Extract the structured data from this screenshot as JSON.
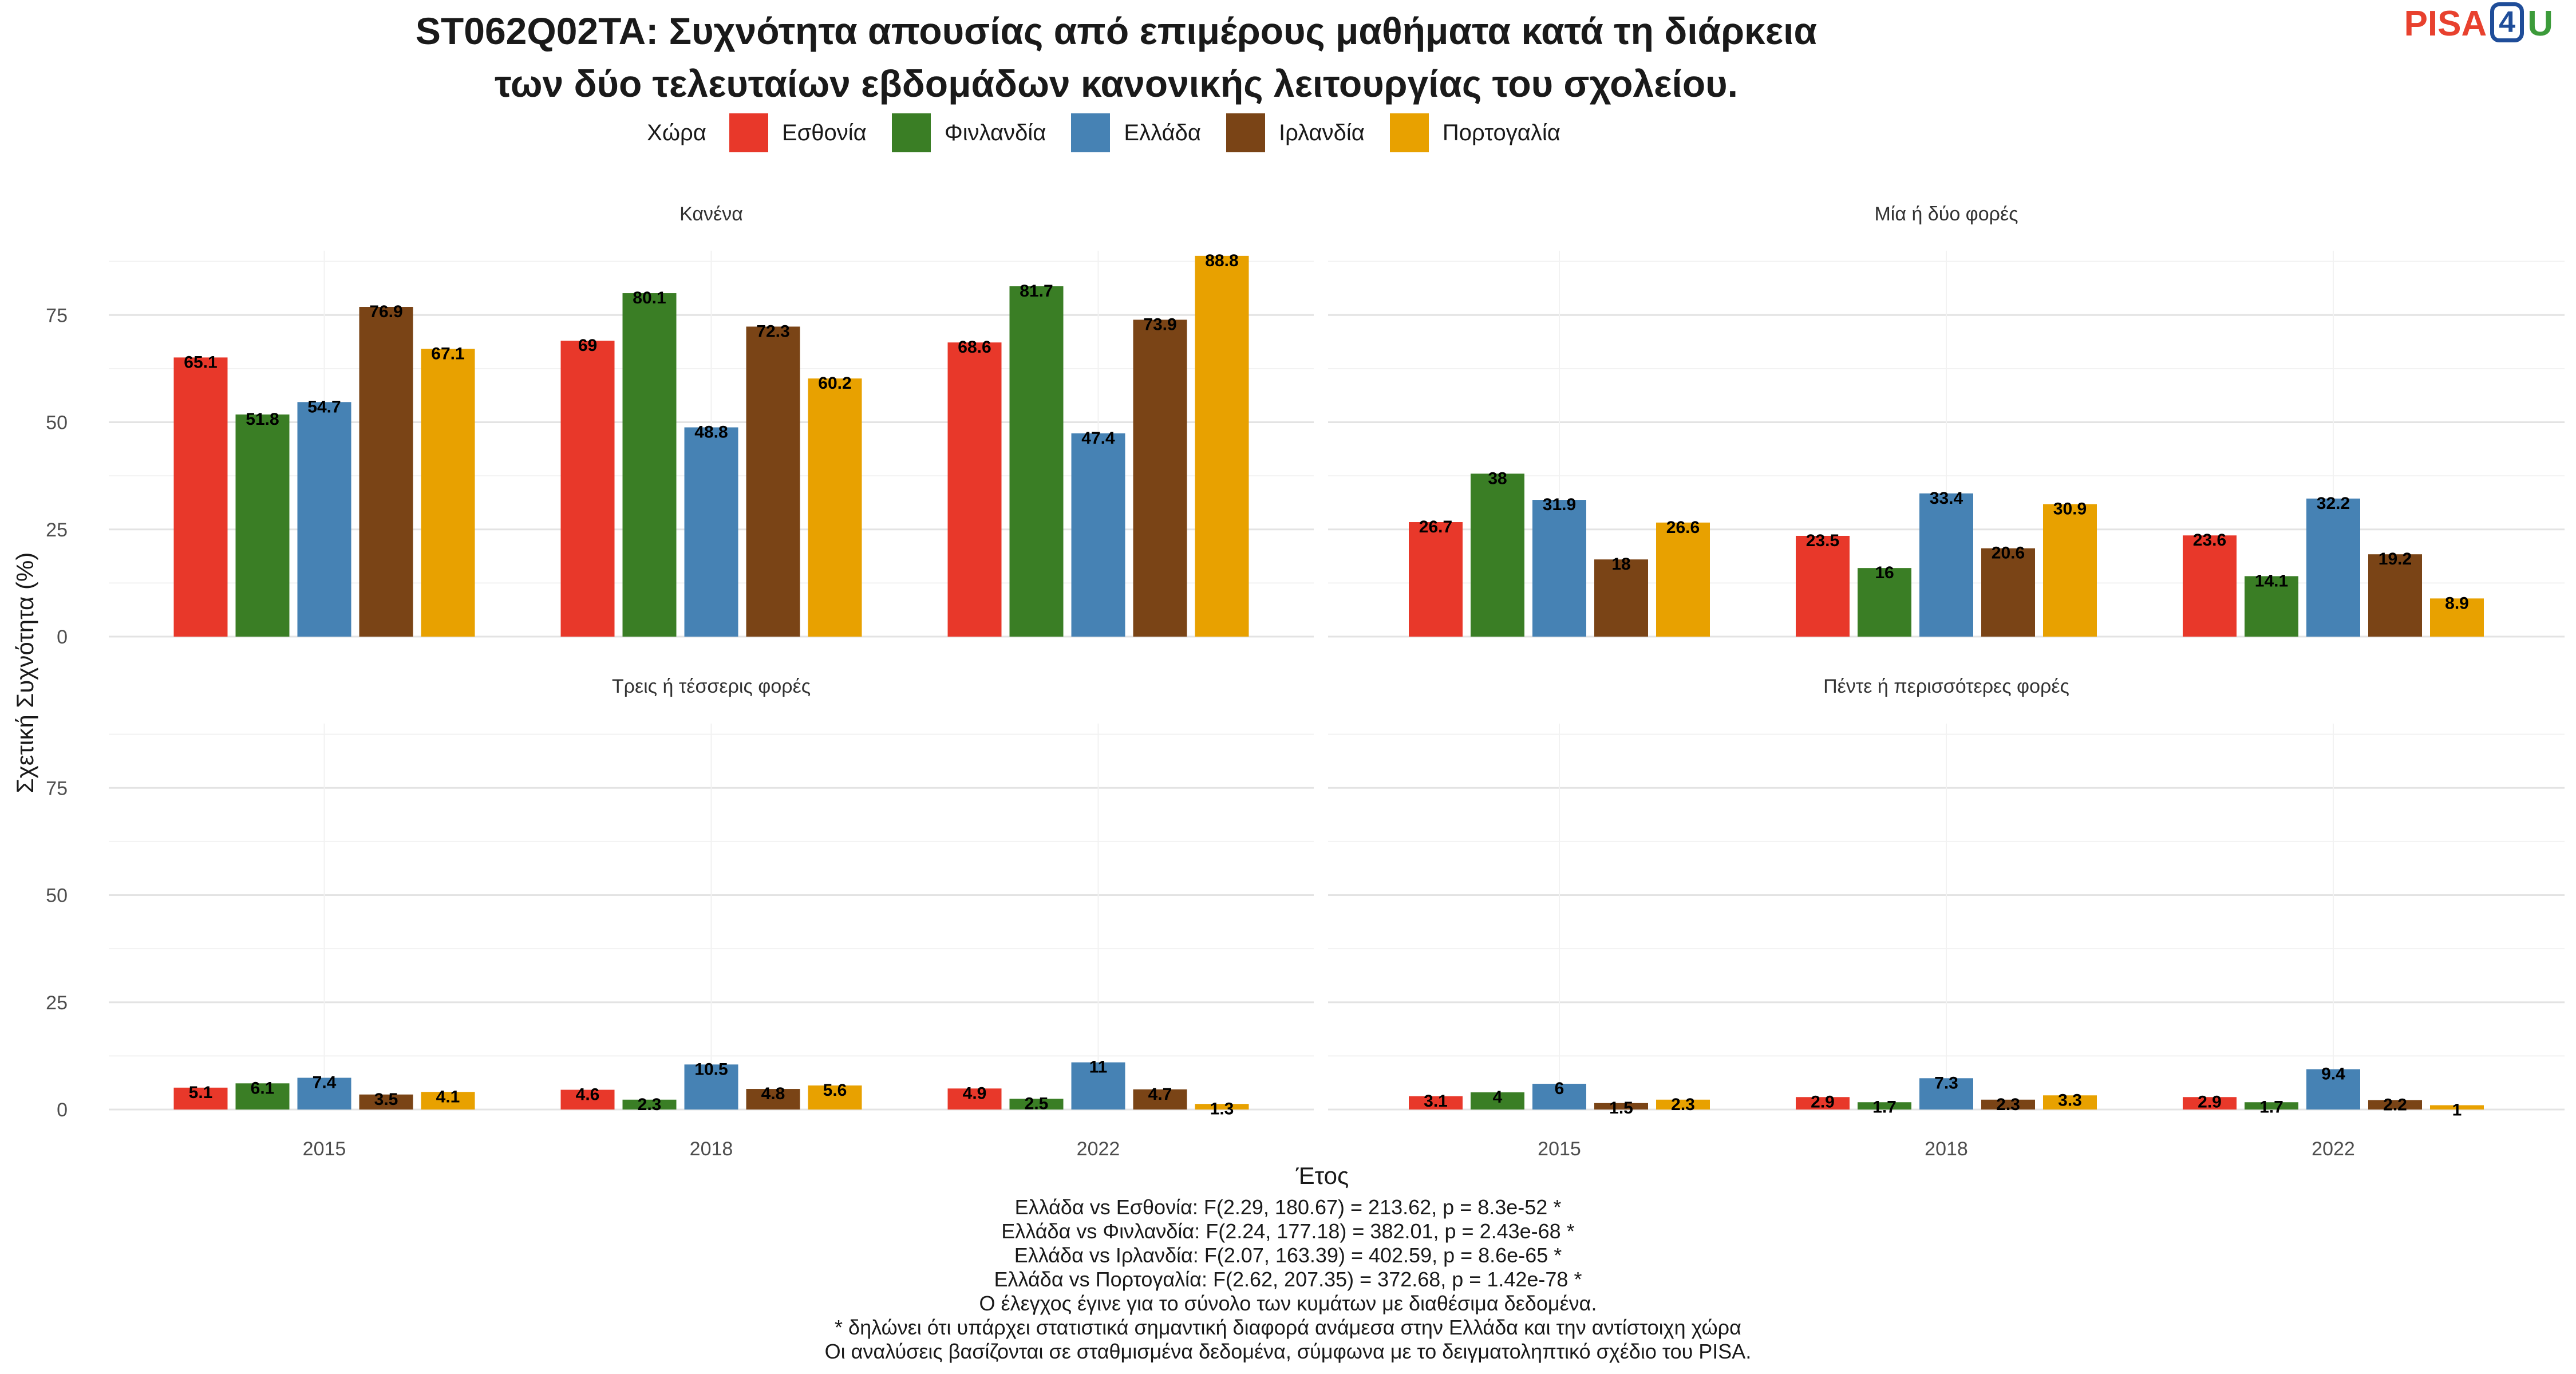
{
  "title": {
    "line1": "ST062Q02TA: Συχνότητα απουσίας από επιμέρους μαθήματα κατά τη διάρκεια",
    "line2": "των δύο τελευταίων εβδομάδων κανονικής λειτουργίας του σχολείου."
  },
  "logo": {
    "text1": "PISA",
    "text2": "4",
    "text3": "U"
  },
  "legend": {
    "title": "Χώρα"
  },
  "notes": [
    "Ελλάδα vs Εσθονία: F(2.29, 180.67) = 213.62, p = 8.3e-52 *",
    "Ελλάδα vs Φινλανδία: F(2.24, 177.18) = 382.01, p = 2.43e-68 *",
    "Ελλάδα vs Ιρλανδία: F(2.07, 163.39) = 402.59, p = 8.6e-65 *",
    "Ελλάδα vs Πορτογαλία: F(2.62, 207.35) = 372.68, p = 1.42e-78 *",
    "Ο έλεγχος έγινε για το σύνολο των κυμάτων με διαθέσιμα δεδομένα.",
    "* δηλώνει ότι υπάρχει στατιστικά σημαντική διαφορά ανάμεσα στην Ελλάδα και την αντίστοιχη χώρα",
    "Οι αναλύσεις βασίζονται σε σταθμισμένα δεδομένα, σύμφωνα με το δειγματοληπτικό σχέδιο του PISA."
  ],
  "chart_data": {
    "type": "bar",
    "xlabel": "Έτος",
    "ylabel": "Σχετική Συχνότητα (%)",
    "ylim": [
      0,
      90
    ],
    "yticks": [
      0,
      25,
      50,
      75
    ],
    "categories": [
      "2015",
      "2018",
      "2022"
    ],
    "series_meta": [
      {
        "name": "Εσθονία",
        "color": "#E8382A"
      },
      {
        "name": "Φινλανδία",
        "color": "#3A7E25"
      },
      {
        "name": "Ελλάδα",
        "color": "#4682B4"
      },
      {
        "name": "Ιρλανδία",
        "color": "#7A4416"
      },
      {
        "name": "Πορτογαλία",
        "color": "#E8A100"
      }
    ],
    "facets": [
      {
        "title": "Κανένα",
        "values": [
          [
            65.1,
            69,
            68.6
          ],
          [
            51.8,
            80.1,
            81.7
          ],
          [
            54.7,
            48.8,
            47.4
          ],
          [
            76.9,
            72.3,
            73.9
          ],
          [
            67.1,
            60.2,
            88.8
          ]
        ]
      },
      {
        "title": "Μία ή δύο φορές",
        "values": [
          [
            26.7,
            23.5,
            23.6
          ],
          [
            38,
            16,
            14.1
          ],
          [
            31.9,
            33.4,
            32.2
          ],
          [
            18,
            20.6,
            19.2
          ],
          [
            26.6,
            30.9,
            8.9
          ]
        ]
      },
      {
        "title": "Τρεις ή τέσσερις φορές",
        "values": [
          [
            5.1,
            4.6,
            4.9
          ],
          [
            6.1,
            2.3,
            2.5
          ],
          [
            7.4,
            10.5,
            11
          ],
          [
            3.5,
            4.8,
            4.7
          ],
          [
            4.1,
            5.6,
            1.3
          ]
        ]
      },
      {
        "title": "Πέντε ή περισσότερες φορές",
        "values": [
          [
            3.1,
            2.9,
            2.9
          ],
          [
            4,
            1.7,
            1.7
          ],
          [
            6,
            7.3,
            9.4
          ],
          [
            1.5,
            2.3,
            2.2
          ],
          [
            2.3,
            3.3,
            1
          ]
        ]
      }
    ]
  }
}
